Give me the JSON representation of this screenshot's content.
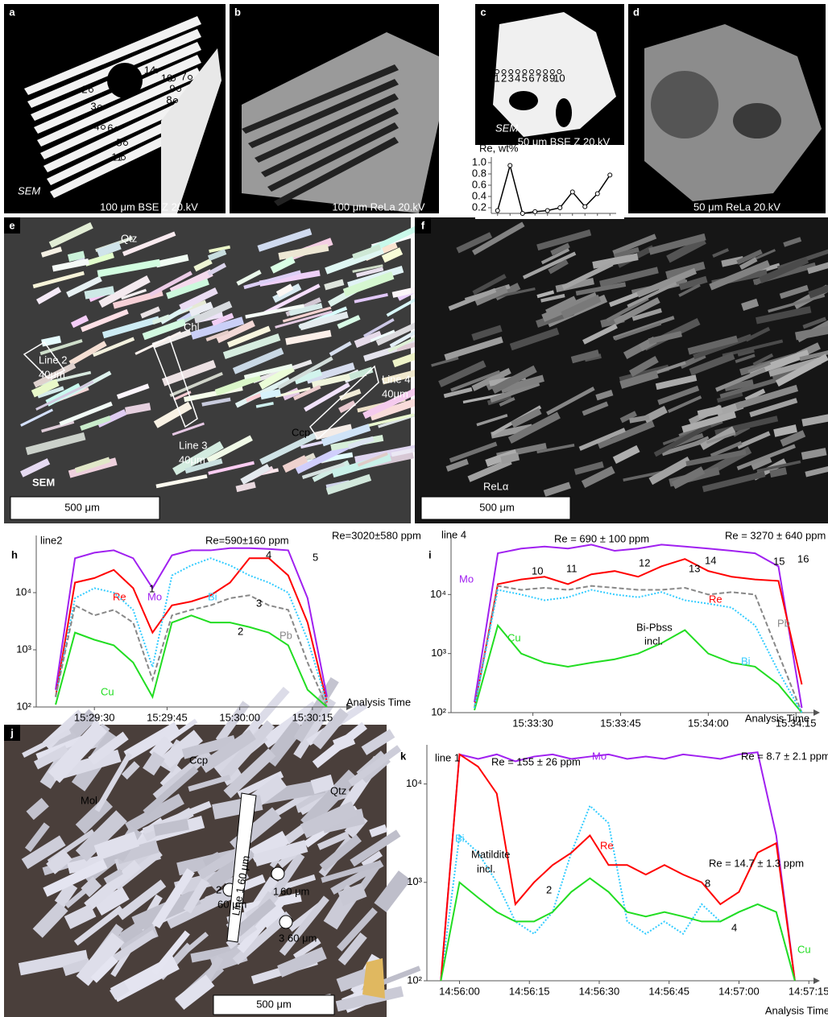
{
  "figure": {
    "a": {
      "label": "a",
      "texts": [
        "SEM",
        "100 μm BSE Z 20.kV"
      ],
      "points": [
        "1",
        "2",
        "3",
        "4",
        "5",
        "6",
        "7",
        "8",
        "9",
        "10",
        "11",
        "12",
        "13",
        "14"
      ]
    },
    "b": {
      "label": "b",
      "texts": [
        "100 μm ReLa 20.kV"
      ]
    },
    "c": {
      "label": "c",
      "texts": [
        "SEM",
        "50 μm BSE Z 20.kV"
      ],
      "points": [
        "1",
        "2",
        "3",
        "4",
        "5",
        "6",
        "7",
        "8",
        "9",
        "10"
      ]
    },
    "d": {
      "label": "d",
      "texts": [
        "50 μm ReLa 20.kV"
      ]
    },
    "e": {
      "label": "e",
      "texts": [
        "Qtz",
        "Chl",
        "Line 2",
        "40μm",
        "Line 3",
        "40μm",
        "Line 4",
        "40μm",
        "Ccp",
        "SEM",
        "500 μm"
      ]
    },
    "f": {
      "label": "f",
      "texts": [
        "ReLα",
        "500 μm"
      ]
    },
    "j": {
      "label": "j",
      "texts": [
        "Mol",
        "Ccp",
        "Qtz",
        "Line 1 60 μm",
        "1",
        "60 μm",
        "2",
        "60 μm",
        "3",
        "60 μm",
        "500 μm"
      ]
    }
  },
  "chart_data": [
    {
      "type": "line",
      "ylabel": "Re, wt%",
      "categories": [
        null,
        null,
        null,
        null,
        null,
        null,
        null,
        null,
        null,
        null
      ],
      "values": [
        0.15,
        0.95,
        0.1,
        0.13,
        0.15,
        0.2,
        0.48,
        0.22,
        0.45,
        0.78
      ],
      "color": "#000000",
      "markers": true,
      "ylim": [
        0.1,
        1.1
      ],
      "yticks": [
        0.2,
        0.4,
        0.6,
        0.8,
        {
          "value": 1,
          "label": "1.0"
        }
      ]
    },
    {
      "type": "line",
      "label": "h",
      "xlabel": "Analysis Time",
      "log_y": true,
      "x": [
        55762,
        55766,
        55770,
        55774,
        55778,
        55782,
        55786,
        55790,
        55794,
        55798,
        55802,
        55806,
        55810,
        55814,
        55818
      ],
      "xlim": [
        55758,
        55822
      ],
      "xticks": [
        {
          "value": 55770,
          "label": "15:29:30"
        },
        {
          "value": 55785,
          "label": "15:29:45"
        },
        {
          "value": 55800,
          "label": "15:30:00"
        },
        {
          "value": 55815,
          "label": "15:30:15"
        }
      ],
      "ylim": [
        100,
        100000
      ],
      "yticks": [
        {
          "value": 100,
          "label": "10²"
        },
        {
          "value": 1000,
          "label": "10³"
        },
        {
          "value": 10000,
          "label": "10⁴"
        }
      ],
      "series": [
        {
          "name": "Mo",
          "color": "#a020f0",
          "style": "solid",
          "values": [
            200,
            40000,
            50000,
            55000,
            40000,
            12000,
            45000,
            55000,
            55000,
            60000,
            60000,
            58000,
            55000,
            8000,
            150
          ]
        },
        {
          "name": "Re",
          "color": "#ff0000",
          "style": "solid",
          "values": [
            150,
            15000,
            18000,
            25000,
            12000,
            2000,
            6000,
            7000,
            9000,
            15000,
            40000,
            40000,
            20000,
            3000,
            120
          ]
        },
        {
          "name": "Bi",
          "color": "#33ccff",
          "style": "dotted",
          "values": [
            150,
            8000,
            12000,
            10000,
            5000,
            500,
            20000,
            30000,
            40000,
            30000,
            20000,
            15000,
            10000,
            1500,
            120
          ]
        },
        {
          "name": "Pb",
          "color": "#888888",
          "style": "dashed",
          "values": [
            150,
            6000,
            4000,
            5000,
            3000,
            300,
            4000,
            5000,
            6000,
            8000,
            9000,
            6000,
            5000,
            600,
            100
          ]
        },
        {
          "name": "Cu",
          "color": "#22dd22",
          "style": "solid",
          "values": [
            110,
            2000,
            1500,
            1200,
            600,
            150,
            3000,
            4000,
            3000,
            3000,
            2500,
            2000,
            1200,
            200,
            100
          ]
        }
      ],
      "annotations": [
        "line2",
        "Re=590±160 ppm",
        "Re=3020±580 ppm",
        "1",
        "2",
        "3",
        "4",
        "5"
      ]
    },
    {
      "type": "line",
      "label": "i",
      "xlabel": "Analysis Time",
      "log_y": true,
      "x": [
        56000,
        56004,
        56008,
        56012,
        56016,
        56020,
        56024,
        56028,
        56032,
        56036,
        56040,
        56044,
        56048,
        56052,
        56056
      ],
      "xlim": [
        55996,
        56058
      ],
      "xticks": [
        {
          "value": 56010,
          "label": "15:33:30"
        },
        {
          "value": 56025,
          "label": "15:33:45"
        },
        {
          "value": 56040,
          "label": "15:34:00"
        },
        {
          "value": 56055,
          "label": "15:34:15"
        }
      ],
      "ylim": [
        100,
        100000
      ],
      "yticks": [
        {
          "value": 100,
          "label": "10²"
        },
        {
          "value": 1000,
          "label": "10³"
        },
        {
          "value": 10000,
          "label": "10⁴"
        }
      ],
      "series": [
        {
          "name": "Mo",
          "color": "#a020f0",
          "style": "solid",
          "values": [
            150,
            50000,
            60000,
            65000,
            60000,
            70000,
            55000,
            60000,
            70000,
            65000,
            60000,
            55000,
            50000,
            30000,
            120
          ]
        },
        {
          "name": "Re",
          "color": "#ff0000",
          "style": "solid",
          "values": [
            120,
            15000,
            18000,
            20000,
            15000,
            22000,
            25000,
            20000,
            30000,
            40000,
            25000,
            20000,
            18000,
            17000,
            300
          ]
        },
        {
          "name": "Pb",
          "color": "#888888",
          "style": "dashed",
          "values": [
            120,
            14000,
            12000,
            13000,
            12000,
            14000,
            13000,
            12000,
            12000,
            13000,
            10000,
            11000,
            10000,
            1000,
            100
          ]
        },
        {
          "name": "Cu",
          "color": "#22dd22",
          "style": "solid",
          "values": [
            110,
            3000,
            1000,
            700,
            600,
            700,
            800,
            1000,
            1500,
            2500,
            1000,
            700,
            600,
            300,
            100
          ]
        },
        {
          "name": "Bi",
          "color": "#33ccff",
          "style": "dotted",
          "values": [
            120,
            12000,
            10000,
            8000,
            9000,
            12000,
            10000,
            9000,
            11000,
            8000,
            7000,
            6000,
            3000,
            500,
            100
          ]
        }
      ],
      "annotations": [
        "line 4",
        "Re = 690 ± 100 ppm",
        "Re = 3270 ± 640 ppm",
        "10",
        "11",
        "12",
        "13",
        "14",
        "15",
        "16",
        "Bi-Pbss",
        "incl."
      ]
    },
    {
      "type": "line",
      "label": "k",
      "xlabel": "Analysis Time",
      "log_y": true,
      "x": [
        53756,
        53760,
        53764,
        53768,
        53772,
        53776,
        53780,
        53784,
        53788,
        53792,
        53796,
        53800,
        53804,
        53808,
        53812,
        53816,
        53820,
        53824,
        53828,
        53832
      ],
      "xlim": [
        53753,
        53836
      ],
      "xticks": [
        {
          "value": 53760,
          "label": "14:56:00"
        },
        {
          "value": 53775,
          "label": "14:56:15"
        },
        {
          "value": 53790,
          "label": "14:56:30"
        },
        {
          "value": 53805,
          "label": "14:56:45"
        },
        {
          "value": 53820,
          "label": "14:57:00"
        },
        {
          "value": 53835,
          "label": "14:57:15"
        }
      ],
      "ylim": [
        100,
        25000
      ],
      "yticks": [
        {
          "value": 100,
          "label": "10²"
        },
        {
          "value": 1000,
          "label": "10³"
        },
        {
          "value": 10000,
          "label": "10⁴"
        }
      ],
      "series": [
        {
          "name": "Mo",
          "color": "#a020f0",
          "style": "solid",
          "values": [
            100,
            20000,
            18000,
            20000,
            17000,
            19000,
            20000,
            18000,
            19000,
            20000,
            18000,
            19000,
            18000,
            20000,
            19000,
            18000,
            20000,
            21000,
            3000,
            100
          ]
        },
        {
          "name": "Bi",
          "color": "#33ccff",
          "style": "dotted",
          "values": [
            100,
            3000,
            2000,
            1000,
            400,
            300,
            500,
            2000,
            6000,
            4000,
            400,
            300,
            400,
            300,
            600,
            400,
            500,
            600,
            500,
            100
          ]
        },
        {
          "name": "Re",
          "color": "#ff0000",
          "style": "solid",
          "values": [
            100,
            20000,
            15000,
            8000,
            600,
            1000,
            1500,
            2000,
            3000,
            1500,
            1500,
            1200,
            1500,
            1200,
            1000,
            600,
            800,
            2000,
            2500,
            100
          ]
        },
        {
          "name": "Cu",
          "color": "#22dd22",
          "style": "solid",
          "values": [
            100,
            1000,
            700,
            500,
            400,
            400,
            500,
            800,
            1100,
            800,
            500,
            450,
            500,
            450,
            400,
            400,
            500,
            600,
            500,
            100
          ]
        }
      ],
      "annotations": [
        "Re = 155 ± 26 ppm",
        "line 1",
        "Re = 8.7 ± 2.1 ppm",
        "Matildite",
        "incl.",
        "Re = 14.7 ± 1.3 ppm",
        "2",
        "8",
        "4"
      ]
    }
  ]
}
